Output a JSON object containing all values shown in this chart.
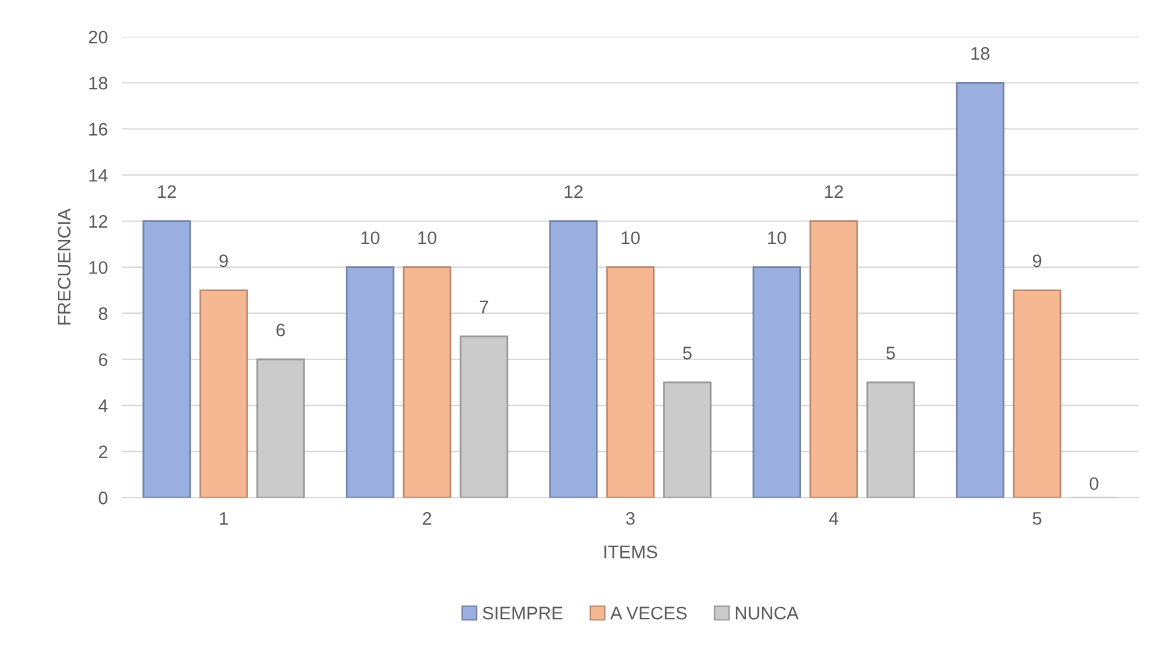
{
  "chart_data": {
    "type": "bar",
    "xlabel": "ITEMS",
    "ylabel": "FRECUENCIA",
    "categories": [
      "1",
      "2",
      "3",
      "4",
      "5"
    ],
    "series": [
      {
        "name": "SIEMPRE",
        "color": "#9aafdf",
        "values": [
          12,
          10,
          12,
          10,
          18
        ]
      },
      {
        "name": "A VECES",
        "color": "#f6b793",
        "values": [
          9,
          10,
          10,
          12,
          9
        ]
      },
      {
        "name": "NUNCA",
        "color": "#cbcbcb",
        "values": [
          6,
          7,
          5,
          5,
          0
        ]
      }
    ],
    "ylim": [
      0,
      20
    ],
    "yticks": [
      0,
      2,
      4,
      6,
      8,
      10,
      12,
      14,
      16,
      18,
      20
    ],
    "grid": "y",
    "legend": "bottom",
    "data_labels": true
  }
}
